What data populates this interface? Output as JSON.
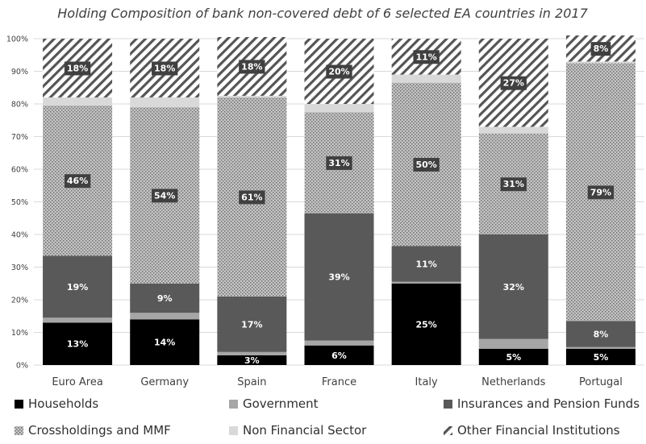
{
  "chart_data": {
    "type": "bar",
    "stacked": true,
    "title": "Holding Composition of bank non-covered debt of 6 selected EA countries in 2017",
    "xlabel": "",
    "ylabel": "",
    "ylim": [
      0,
      100
    ],
    "y_ticks": [
      "0%",
      "10%",
      "20%",
      "30%",
      "40%",
      "50%",
      "60%",
      "70%",
      "80%",
      "90%",
      "100%"
    ],
    "grid": true,
    "legend_position": "bottom",
    "categories": [
      "Euro Area",
      "Germany",
      "Spain",
      "France",
      "Italy",
      "Netherlands",
      "Portugal"
    ],
    "series": [
      {
        "name": "Households",
        "color": "#000000",
        "pattern": "solid",
        "values": [
          13,
          14,
          3,
          6,
          25,
          5,
          5
        ],
        "labels": [
          "13%",
          "14%",
          "3%",
          "6%",
          "25%",
          "5%",
          "5%"
        ]
      },
      {
        "name": "Government",
        "color": "#a6a6a6",
        "pattern": "solid",
        "values": [
          1.5,
          2,
          1,
          1.5,
          0.5,
          3,
          0.5
        ],
        "labels": [
          "",
          "",
          "",
          "",
          "",
          "",
          ""
        ]
      },
      {
        "name": "Insurances and Pension Funds",
        "color": "#595959",
        "pattern": "solid",
        "values": [
          19,
          9,
          17,
          39,
          11,
          32,
          8
        ],
        "labels": [
          "19%",
          "9%",
          "17%",
          "39%",
          "11%",
          "32%",
          "8%"
        ]
      },
      {
        "name": "Crossholdings and MMF",
        "color": "#8c8c8c",
        "pattern": "crosshatch",
        "values": [
          46,
          54,
          61,
          31,
          50,
          31,
          79
        ],
        "labels": [
          "46%",
          "54%",
          "61%",
          "31%",
          "50%",
          "31%",
          "79%"
        ]
      },
      {
        "name": "Non Financial Sector",
        "color": "#d9d9d9",
        "pattern": "solid",
        "values": [
          2.5,
          3,
          0.5,
          2.5,
          2.5,
          2,
          0.5
        ],
        "labels": [
          "",
          "",
          "",
          "",
          "",
          "",
          ""
        ]
      },
      {
        "name": "Other Financial Institutions",
        "color": "#595959",
        "pattern": "diagonal",
        "values": [
          18,
          18,
          18,
          20,
          11,
          27,
          8
        ],
        "labels": [
          "18%",
          "18%",
          "18%",
          "20%",
          "11%",
          "27%",
          "8%"
        ]
      }
    ]
  }
}
